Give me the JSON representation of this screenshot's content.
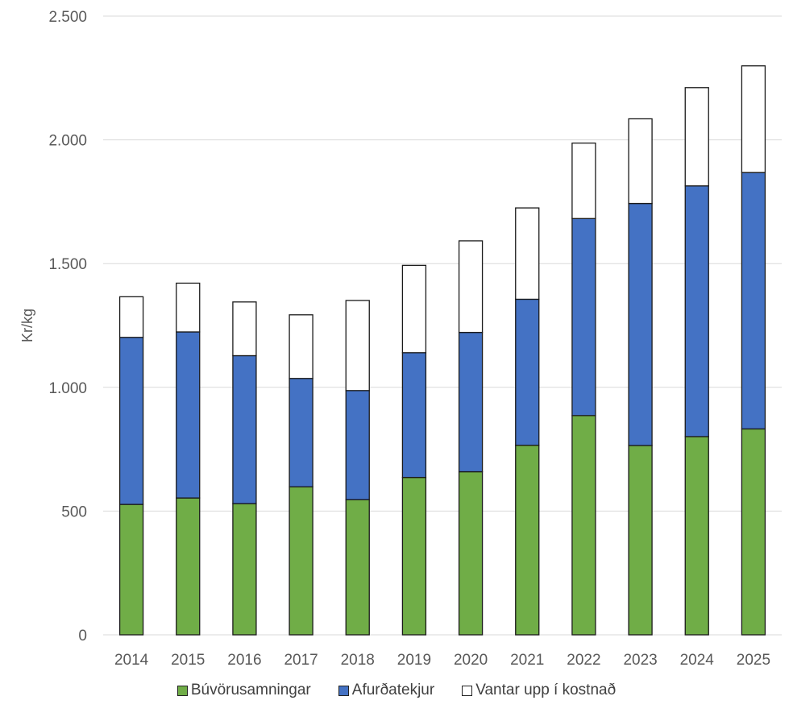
{
  "chart_data": {
    "type": "bar",
    "stacked": true,
    "title": "",
    "xlabel": "",
    "ylabel": "Kr/kg",
    "ylim": [
      0,
      2500
    ],
    "yticks": [
      0,
      500,
      1000,
      1500,
      2000,
      2500
    ],
    "ytick_labels": [
      "0",
      "500",
      "1.000",
      "1.500",
      "2.000",
      "2.500"
    ],
    "grid": true,
    "legend_position": "bottom",
    "categories": [
      "2014",
      "2015",
      "2016",
      "2017",
      "2018",
      "2019",
      "2020",
      "2021",
      "2022",
      "2023",
      "2024",
      "2025"
    ],
    "series": [
      {
        "name": "Búvörusamningar",
        "color": "#70AD47",
        "values": [
          527,
          553,
          530,
          598,
          546,
          636,
          659,
          766,
          886,
          765,
          801,
          832
        ]
      },
      {
        "name": "Afurðatekjur",
        "color": "#4472C4",
        "values": [
          675,
          671,
          598,
          438,
          441,
          504,
          563,
          590,
          796,
          978,
          1013,
          1036
        ]
      },
      {
        "name": "Vantar upp í kostnað",
        "color": "#FFFFFF",
        "values": [
          164,
          197,
          217,
          257,
          364,
          353,
          370,
          369,
          305,
          342,
          397,
          431
        ]
      }
    ]
  }
}
